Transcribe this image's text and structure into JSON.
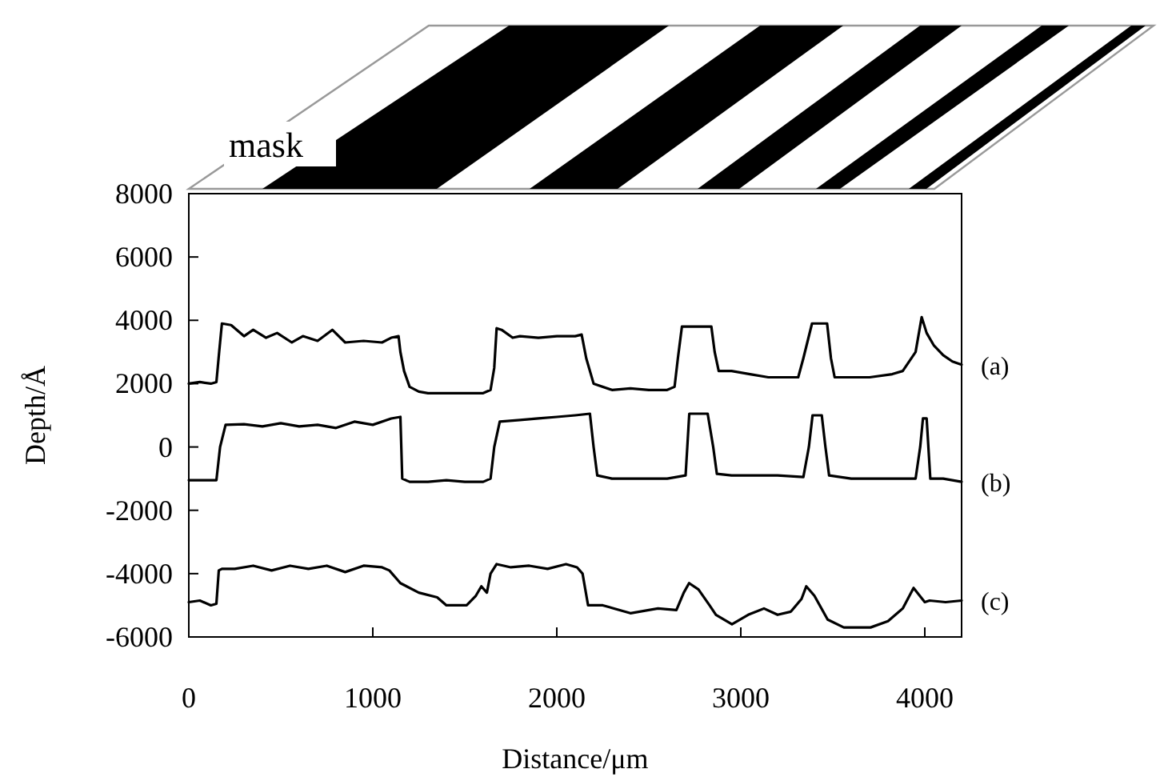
{
  "chart_data": {
    "type": "line",
    "xlabel": "Distance/μm",
    "ylabel": "Depth/Å",
    "annotations": [
      "mask"
    ],
    "xlim": [
      0,
      4200
    ],
    "ylim": [
      -6000,
      8000
    ],
    "xticks": [
      0,
      1000,
      2000,
      3000,
      4000
    ],
    "yticks": [
      -6000,
      -4000,
      -2000,
      0,
      2000,
      4000,
      6000,
      8000
    ],
    "grid": false,
    "legend": false,
    "marker": "none",
    "line_style": "solid",
    "series": [
      {
        "name": "(a)",
        "color": "#000000",
        "x": [
          0,
          60,
          120,
          150,
          165,
          180,
          230,
          300,
          350,
          420,
          480,
          560,
          620,
          700,
          780,
          850,
          950,
          1050,
          1100,
          1140,
          1150,
          1170,
          1200,
          1250,
          1300,
          1400,
          1500,
          1600,
          1640,
          1660,
          1673,
          1700,
          1760,
          1800,
          1900,
          2000,
          2100,
          2135,
          2160,
          2200,
          2300,
          2400,
          2500,
          2600,
          2640,
          2658,
          2680,
          2760,
          2840,
          2858,
          2880,
          2950,
          3050,
          3150,
          3250,
          3312,
          3340,
          3387,
          3469,
          3490,
          3510,
          3550,
          3700,
          3823,
          3880,
          3950,
          3983,
          4010,
          4050,
          4100,
          4150,
          4200
        ],
        "values": [
          2000,
          2050,
          2000,
          2050,
          3000,
          3900,
          3850,
          3500,
          3700,
          3450,
          3600,
          3300,
          3500,
          3350,
          3700,
          3300,
          3350,
          3300,
          3450,
          3500,
          3000,
          2400,
          1900,
          1750,
          1700,
          1700,
          1700,
          1700,
          1800,
          2500,
          3750,
          3700,
          3450,
          3500,
          3450,
          3500,
          3500,
          3550,
          2800,
          2000,
          1800,
          1850,
          1800,
          1800,
          1900,
          2800,
          3800,
          3800,
          3800,
          3000,
          2400,
          2400,
          2300,
          2200,
          2200,
          2200,
          2800,
          3900,
          3900,
          2800,
          2200,
          2200,
          2200,
          2300,
          2400,
          3000,
          4100,
          3600,
          3200,
          2900,
          2700,
          2600
        ]
      },
      {
        "name": "(b)",
        "color": "#000000",
        "x": [
          0,
          150,
          170,
          200,
          300,
          400,
          500,
          600,
          700,
          800,
          900,
          1000,
          1100,
          1150,
          1160,
          1200,
          1300,
          1400,
          1500,
          1600,
          1640,
          1660,
          1690,
          1800,
          1900,
          2000,
          2100,
          2180,
          2200,
          2220,
          2300,
          2400,
          2500,
          2600,
          2650,
          2700,
          2720,
          2820,
          2850,
          2870,
          2950,
          3100,
          3200,
          3340,
          3370,
          3390,
          3440,
          3460,
          3480,
          3600,
          3800,
          3950,
          3975,
          3990,
          4010,
          4030,
          4100,
          4200
        ],
        "values": [
          -1050,
          -1050,
          0,
          700,
          720,
          650,
          750,
          650,
          700,
          600,
          800,
          700,
          900,
          950,
          -1000,
          -1100,
          -1100,
          -1050,
          -1100,
          -1100,
          -1000,
          0,
          800,
          850,
          900,
          950,
          1000,
          1050,
          0,
          -900,
          -1000,
          -1000,
          -1000,
          -1000,
          -950,
          -900,
          1050,
          1050,
          0,
          -850,
          -900,
          -900,
          -900,
          -950,
          0,
          1000,
          1000,
          0,
          -900,
          -1000,
          -1000,
          -1000,
          0,
          900,
          900,
          -1000,
          -1000,
          -1100
        ]
      },
      {
        "name": "(c)",
        "color": "#000000",
        "x": [
          0,
          60,
          120,
          150,
          163,
          180,
          250,
          350,
          450,
          550,
          650,
          750,
          850,
          950,
          1050,
          1090,
          1150,
          1250,
          1350,
          1400,
          1510,
          1560,
          1590,
          1620,
          1640,
          1673,
          1750,
          1850,
          1950,
          2050,
          2110,
          2140,
          2170,
          2250,
          2400,
          2550,
          2650,
          2690,
          2719,
          2770,
          2830,
          2865,
          2952,
          3040,
          3126,
          3200,
          3272,
          3330,
          3356,
          3400,
          3472,
          3560,
          3705,
          3800,
          3880,
          3939,
          4000,
          4026,
          4113,
          4200
        ],
        "values": [
          -4900,
          -4850,
          -5000,
          -4950,
          -3900,
          -3850,
          -3850,
          -3750,
          -3900,
          -3750,
          -3850,
          -3750,
          -3950,
          -3750,
          -3800,
          -3900,
          -4300,
          -4600,
          -4750,
          -5000,
          -5000,
          -4700,
          -4400,
          -4600,
          -4000,
          -3700,
          -3800,
          -3750,
          -3850,
          -3700,
          -3800,
          -4000,
          -5000,
          -5000,
          -5250,
          -5100,
          -5150,
          -4600,
          -4300,
          -4500,
          -5000,
          -5300,
          -5600,
          -5300,
          -5100,
          -5300,
          -5200,
          -4800,
          -4400,
          -4700,
          -5450,
          -5700,
          -5700,
          -5500,
          -5100,
          -4450,
          -4900,
          -4850,
          -4900,
          -4850
        ]
      }
    ]
  }
}
